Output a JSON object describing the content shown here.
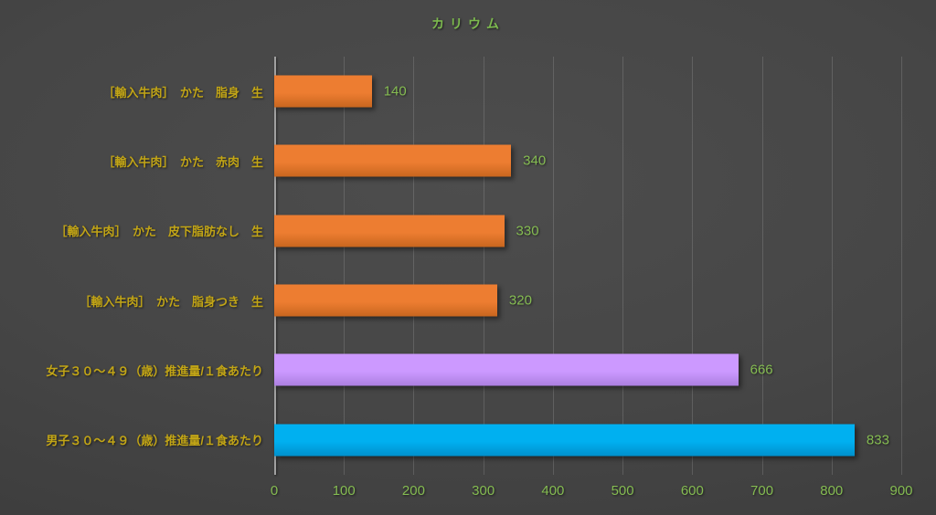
{
  "chart_data": {
    "type": "bar",
    "orientation": "horizontal",
    "title": "カリウム",
    "categories": [
      "［輸入牛肉］　かた　脂身　生",
      "［輸入牛肉］　かた　赤肉　生",
      "［輸入牛肉］　かた　皮下脂肪なし　生",
      "［輸入牛肉］　かた　脂身つき　生",
      "女子３０～４９（歳）推進量/１食あたり",
      "男子３０～４９（歳）推進量/１食あたり"
    ],
    "values": [
      140,
      340,
      330,
      320,
      666,
      833
    ],
    "bar_colors": [
      "#ED7D31",
      "#ED7D31",
      "#ED7D31",
      "#ED7D31",
      "#CC99FF",
      "#00B0F0"
    ],
    "bar_colors_dark": [
      "#C8661F",
      "#C8661F",
      "#C8661F",
      "#C8661F",
      "#AC7FE0",
      "#0090CC"
    ],
    "xlim": [
      0,
      900
    ],
    "x_ticks": [
      0,
      100,
      200,
      300,
      400,
      500,
      600,
      700,
      800,
      900
    ],
    "xlabel": "",
    "ylabel": "",
    "grid": "vertical",
    "legend": "none",
    "colors": {
      "background_center": "#4d4d4d",
      "background_edge": "#383838",
      "title_text": "#7cb94e",
      "category_text": "#c2a516",
      "value_text": "#85bc52",
      "tick_text": "#85bc52",
      "axis_line": "#a0a0a0",
      "gridline": "rgba(255,255,255,0.14)"
    }
  }
}
